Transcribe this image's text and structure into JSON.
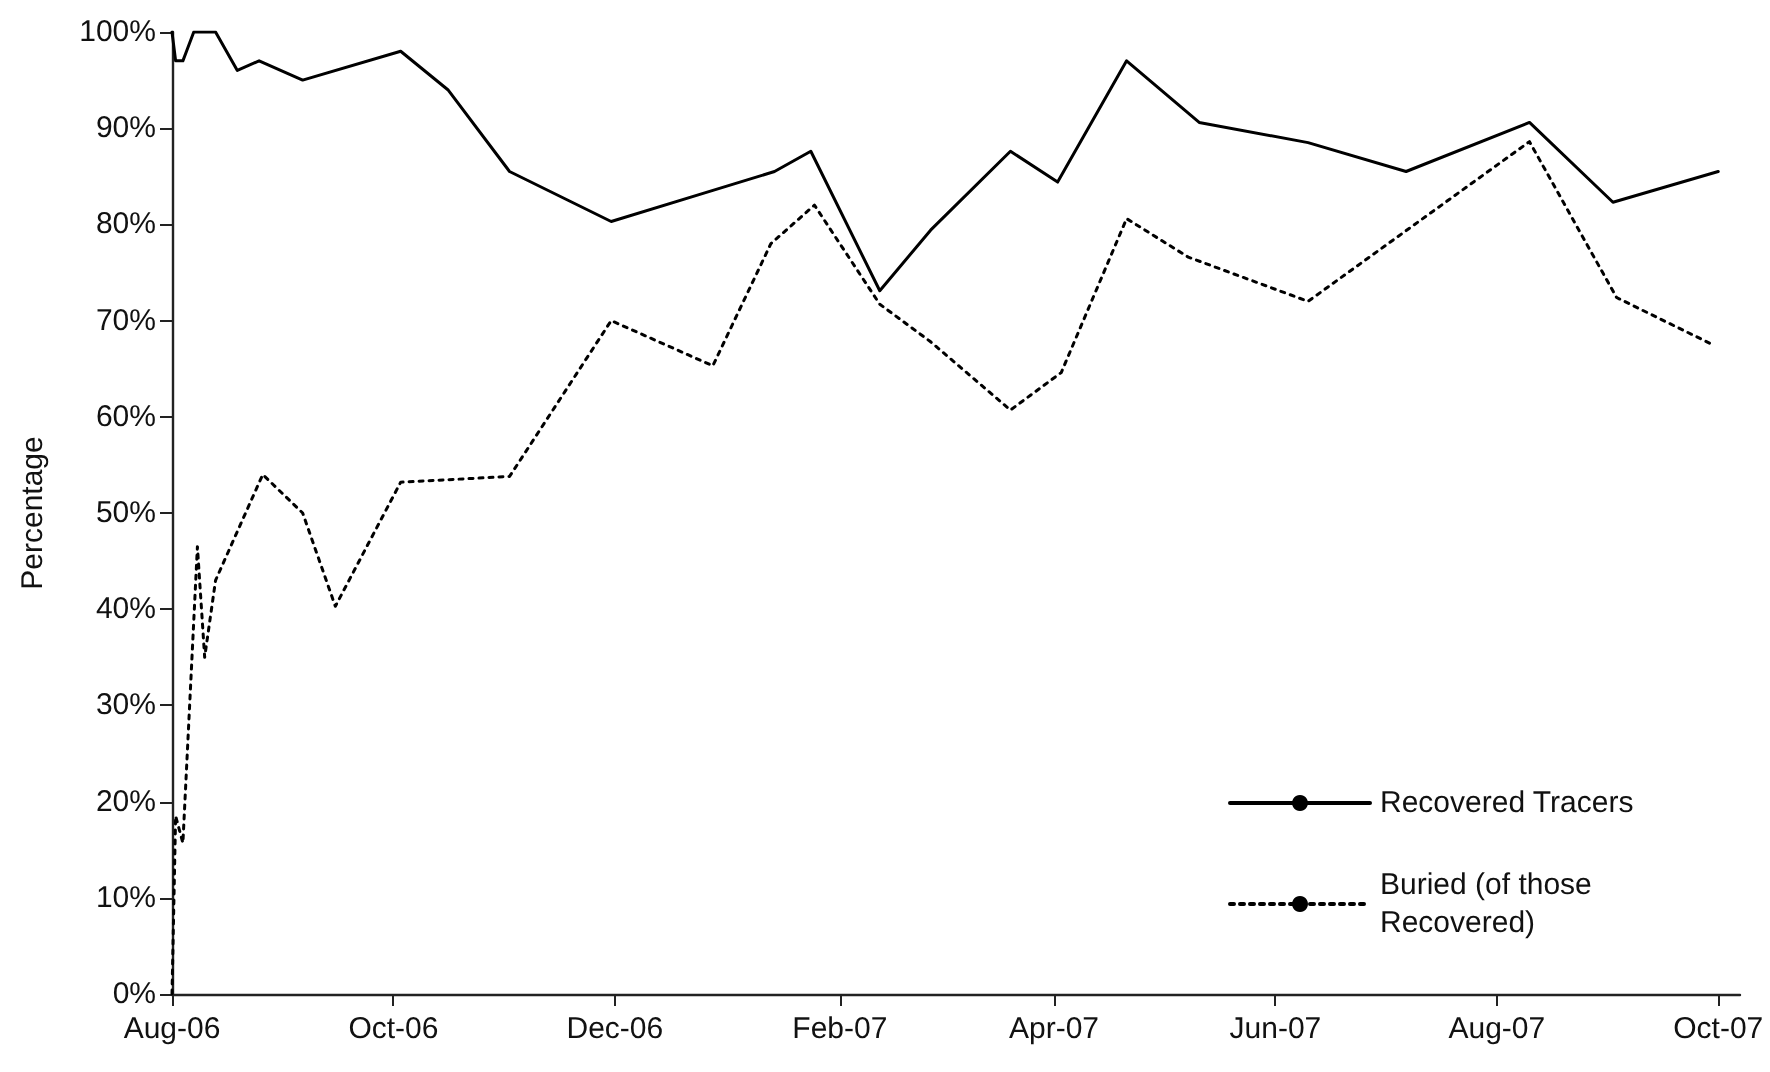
{
  "chart_data": {
    "type": "line",
    "ylabel": "Percentage",
    "xlim": [
      "2006-08-01",
      "2007-10-07"
    ],
    "xticks": [
      {
        "value": "2006-08-01",
        "label": "Aug-06"
      },
      {
        "value": "2006-10-01",
        "label": "Oct-06"
      },
      {
        "value": "2006-12-01",
        "label": "Dec-06"
      },
      {
        "value": "2007-02-01",
        "label": "Feb-07"
      },
      {
        "value": "2007-04-01",
        "label": "Apr-07"
      },
      {
        "value": "2007-06-01",
        "label": "Jun-07"
      },
      {
        "value": "2007-08-01",
        "label": "Aug-07"
      },
      {
        "value": "2007-10-01",
        "label": "Oct-07"
      }
    ],
    "ylim": [
      0,
      100
    ],
    "yticks": [
      {
        "value": 0,
        "label": "0%"
      },
      {
        "value": 10,
        "label": "10%"
      },
      {
        "value": 20,
        "label": "20%"
      },
      {
        "value": 30,
        "label": "30%"
      },
      {
        "value": 40,
        "label": "40%"
      },
      {
        "value": 50,
        "label": "50%"
      },
      {
        "value": 60,
        "label": "60%"
      },
      {
        "value": 70,
        "label": "70%"
      },
      {
        "value": 80,
        "label": "80%"
      },
      {
        "value": 90,
        "label": "90%"
      },
      {
        "value": 100,
        "label": "100%"
      }
    ],
    "grid": false,
    "legend": "bottom right",
    "marker": "none",
    "series": [
      {
        "name": "Recovered Tracers",
        "color": "#000000",
        "line_style": "solid",
        "x": [
          "2006-08-01",
          "2006-08-02",
          "2006-08-04",
          "2006-08-05",
          "2006-08-07",
          "2006-08-13",
          "2006-08-19",
          "2006-08-25",
          "2006-09-06",
          "2006-10-03",
          "2006-10-16",
          "2006-11-02",
          "2006-11-30",
          "2006-12-26",
          "2007-01-14",
          "2007-01-24",
          "2007-02-12",
          "2007-02-26",
          "2007-03-20",
          "2007-04-02",
          "2007-04-21",
          "2007-05-11",
          "2007-06-10",
          "2007-07-07",
          "2007-08-10",
          "2007-09-02",
          "2007-10-01"
        ],
        "values": [
          100,
          97,
          97,
          98,
          100,
          100,
          96,
          97,
          95,
          98,
          94,
          85.5,
          80.3,
          83.3,
          85.5,
          87.6,
          73.1,
          79.4,
          87.6,
          84.4,
          97,
          90.6,
          88.5,
          85.5,
          90.6,
          82.3,
          85.5
        ]
      },
      {
        "name": "Buried (of those Recovered)",
        "color": "#000000",
        "line_style": "dotted",
        "x": [
          "2006-08-01",
          "2006-08-02",
          "2006-08-04",
          "2006-08-08",
          "2006-08-10",
          "2006-08-13",
          "2006-08-26",
          "2006-09-06",
          "2006-09-15",
          "2006-10-03",
          "2006-11-02",
          "2006-11-30",
          "2006-12-28",
          "2007-01-13",
          "2007-01-25",
          "2007-02-12",
          "2007-02-26",
          "2007-03-20",
          "2007-04-03",
          "2007-04-21",
          "2007-05-08",
          "2007-06-10",
          "2007-08-10",
          "2007-09-03",
          "2007-09-30"
        ],
        "values": [
          0,
          18.5,
          15.7,
          46.5,
          35,
          43,
          54,
          50,
          40.3,
          53.2,
          53.8,
          70,
          65.3,
          78,
          82,
          71.7,
          67.8,
          60.7,
          64.6,
          80.6,
          76.6,
          72,
          88.6,
          72.4,
          67.4
        ]
      }
    ]
  }
}
